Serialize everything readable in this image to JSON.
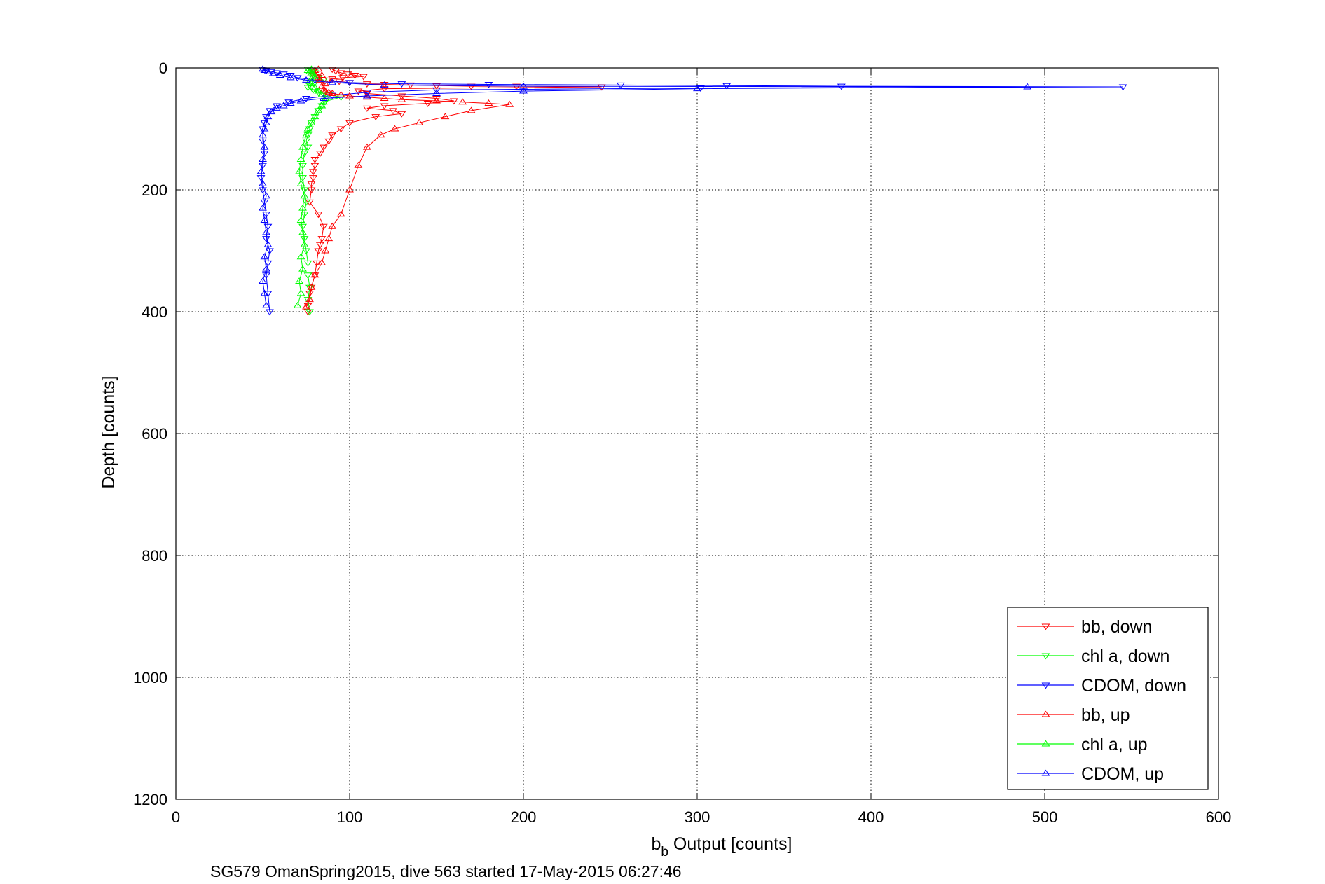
{
  "chart_data": {
    "type": "scatter",
    "title": "",
    "xlabel_main": "b",
    "xlabel_sub": "b",
    "xlabel_rest": " Output [counts]",
    "ylabel": "Depth [counts]",
    "caption": "SG579 OmanSpring2015, dive 563 started 17-May-2015 06:27:46",
    "xlim": [
      0,
      600
    ],
    "ylim": [
      0,
      1200
    ],
    "y_reversed": true,
    "grid": true,
    "legend_position": "bottom-right",
    "x_ticks": [
      "0",
      "100",
      "200",
      "300",
      "400",
      "500",
      "600"
    ],
    "y_ticks": [
      "0",
      "200",
      "400",
      "600",
      "800",
      "1000",
      "1200"
    ],
    "series": [
      {
        "name": "bb, down",
        "color": "#ff0000",
        "marker": "triangle-down",
        "x": [
          90,
          92,
          95,
          99,
          103,
          108,
          96,
          90,
          88,
          94,
          100,
          110,
          120,
          135,
          150,
          170,
          196,
          245,
          120,
          105,
          110,
          130,
          150,
          160,
          145,
          120,
          110,
          125,
          130,
          115,
          100,
          95,
          90,
          88,
          85,
          83,
          80,
          80,
          79,
          79,
          78,
          78,
          77,
          82,
          85,
          84,
          83,
          82,
          81,
          80,
          78,
          77,
          76,
          76
        ],
        "y": [
          2,
          5,
          8,
          10,
          12,
          14,
          16,
          18,
          20,
          22,
          24,
          26,
          27,
          28,
          29,
          30,
          30,
          31,
          34,
          38,
          42,
          46,
          50,
          54,
          58,
          62,
          66,
          70,
          75,
          80,
          90,
          100,
          110,
          120,
          130,
          140,
          150,
          160,
          170,
          180,
          190,
          200,
          220,
          240,
          260,
          280,
          290,
          300,
          320,
          340,
          360,
          370,
          390,
          400
        ]
      },
      {
        "name": "chl a, down",
        "color": "#00ff00",
        "marker": "triangle-down",
        "x": [
          76,
          78,
          80,
          79,
          82,
          85,
          80,
          77,
          76,
          79,
          82,
          88,
          95,
          86,
          84,
          82,
          80,
          78,
          77,
          76,
          75,
          76,
          74,
          73,
          73,
          74,
          75,
          74,
          73,
          74,
          75,
          76,
          76,
          77,
          76,
          77
        ],
        "y": [
          2,
          5,
          8,
          12,
          16,
          20,
          24,
          28,
          32,
          36,
          40,
          44,
          48,
          55,
          62,
          70,
          80,
          90,
          100,
          110,
          120,
          130,
          140,
          160,
          180,
          200,
          220,
          240,
          260,
          280,
          300,
          320,
          340,
          360,
          380,
          400
        ]
      },
      {
        "name": "CDOM, down",
        "color": "#0000ff",
        "marker": "triangle-down",
        "x": [
          50,
          52,
          55,
          58,
          62,
          66,
          70,
          80,
          100,
          130,
          180,
          256,
          317,
          383,
          545,
          302,
          150,
          110,
          90,
          75,
          65,
          58,
          54,
          52,
          51,
          50,
          50,
          51,
          50,
          49,
          50,
          51,
          52,
          53,
          52,
          54,
          53,
          52,
          53,
          54
        ],
        "y": [
          2,
          4,
          6,
          8,
          10,
          12,
          16,
          20,
          24,
          26,
          27,
          28,
          29,
          30,
          31,
          33,
          36,
          40,
          45,
          50,
          56,
          62,
          70,
          80,
          90,
          100,
          120,
          140,
          160,
          180,
          200,
          220,
          240,
          260,
          280,
          300,
          320,
          340,
          370,
          400
        ]
      },
      {
        "name": "bb, up",
        "color": "#ff0000",
        "marker": "triangle-up",
        "x": [
          75,
          77,
          78,
          80,
          84,
          86,
          88,
          90,
          95,
          100,
          105,
          110,
          118,
          126,
          140,
          155,
          170,
          192,
          180,
          165,
          150,
          130,
          120,
          110,
          100,
          95,
          90,
          88,
          86,
          85,
          84,
          86,
          83,
          82,
          84,
          80,
          78,
          79,
          80,
          82
        ],
        "y": [
          392,
          380,
          360,
          340,
          320,
          300,
          280,
          260,
          240,
          200,
          160,
          130,
          110,
          100,
          90,
          80,
          70,
          60,
          58,
          56,
          54,
          52,
          50,
          48,
          46,
          44,
          42,
          40,
          38,
          36,
          30,
          26,
          20,
          16,
          12,
          10,
          8,
          6,
          4,
          2
        ]
      },
      {
        "name": "chl a, up",
        "color": "#00ff00",
        "marker": "triangle-up",
        "x": [
          70,
          72,
          71,
          73,
          72,
          74,
          73,
          72,
          73,
          74,
          72,
          71,
          72,
          73,
          75,
          76,
          78,
          80,
          82,
          84,
          85,
          86,
          84,
          82,
          80,
          78,
          77,
          78,
          80,
          79,
          78,
          77,
          76,
          78
        ],
        "y": [
          390,
          370,
          350,
          330,
          310,
          290,
          270,
          250,
          230,
          210,
          190,
          170,
          150,
          130,
          110,
          100,
          90,
          80,
          70,
          62,
          56,
          50,
          44,
          38,
          32,
          26,
          22,
          18,
          14,
          10,
          8,
          6,
          4,
          2
        ]
      },
      {
        "name": "CDOM, up",
        "color": "#0000ff",
        "marker": "triangle-up",
        "x": [
          52,
          51,
          50,
          52,
          51,
          53,
          52,
          51,
          50,
          52,
          50,
          49,
          50,
          51,
          50,
          51,
          52,
          53,
          55,
          58,
          62,
          66,
          72,
          85,
          110,
          150,
          200,
          300,
          490,
          200,
          120,
          90,
          75,
          66,
          60,
          56,
          53,
          51,
          50
        ],
        "y": [
          390,
          370,
          350,
          330,
          310,
          290,
          270,
          250,
          230,
          210,
          190,
          170,
          150,
          130,
          110,
          100,
          90,
          80,
          72,
          66,
          62,
          58,
          54,
          50,
          46,
          42,
          38,
          34,
          31,
          30,
          28,
          24,
          20,
          16,
          12,
          9,
          6,
          4,
          2
        ]
      }
    ]
  }
}
